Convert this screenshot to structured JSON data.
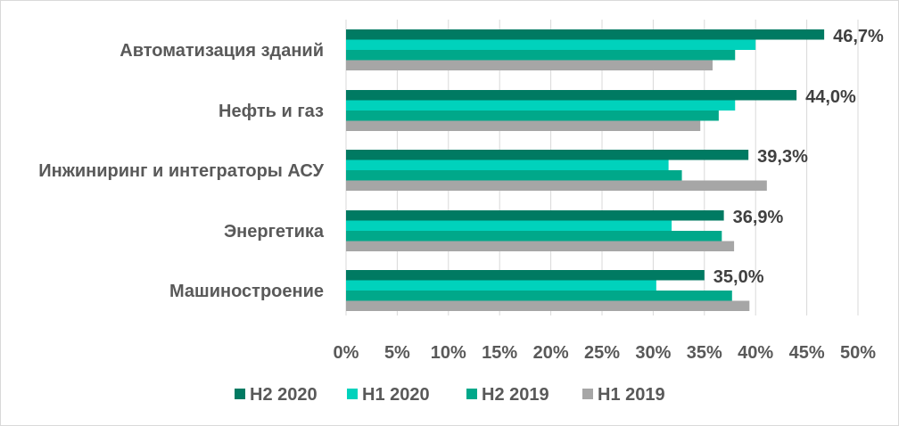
{
  "chart_data": {
    "type": "bar",
    "orientation": "horizontal",
    "categories": [
      "Автоматизация зданий",
      "Нефть и газ",
      "Инжиниринг и интеграторы АСУ",
      "Энергетика",
      "Машиностроение"
    ],
    "series": [
      {
        "name": "H2 2020",
        "color": "#007a62",
        "values": [
          46.7,
          44.0,
          39.3,
          36.9,
          35.0
        ]
      },
      {
        "name": "H1 2020",
        "color": "#00d2bc",
        "values": [
          40.0,
          38.0,
          31.5,
          31.8,
          30.3
        ]
      },
      {
        "name": "H2 2019",
        "color": "#00a88a",
        "values": [
          38.0,
          36.4,
          32.8,
          36.7,
          37.7
        ]
      },
      {
        "name": "H1 2019",
        "color": "#a6a6a6",
        "values": [
          35.8,
          34.6,
          41.1,
          37.9,
          39.4
        ]
      }
    ],
    "data_labels": [
      "46,7%",
      "44,0%",
      "39,3%",
      "36,9%",
      "35,0%"
    ],
    "xlim": [
      0,
      50
    ],
    "x_ticks": [
      "0%",
      "5%",
      "10%",
      "15%",
      "20%",
      "25%",
      "30%",
      "35%",
      "40%",
      "45%",
      "50%"
    ],
    "grid": "vertical",
    "legend_position": "bottom"
  }
}
